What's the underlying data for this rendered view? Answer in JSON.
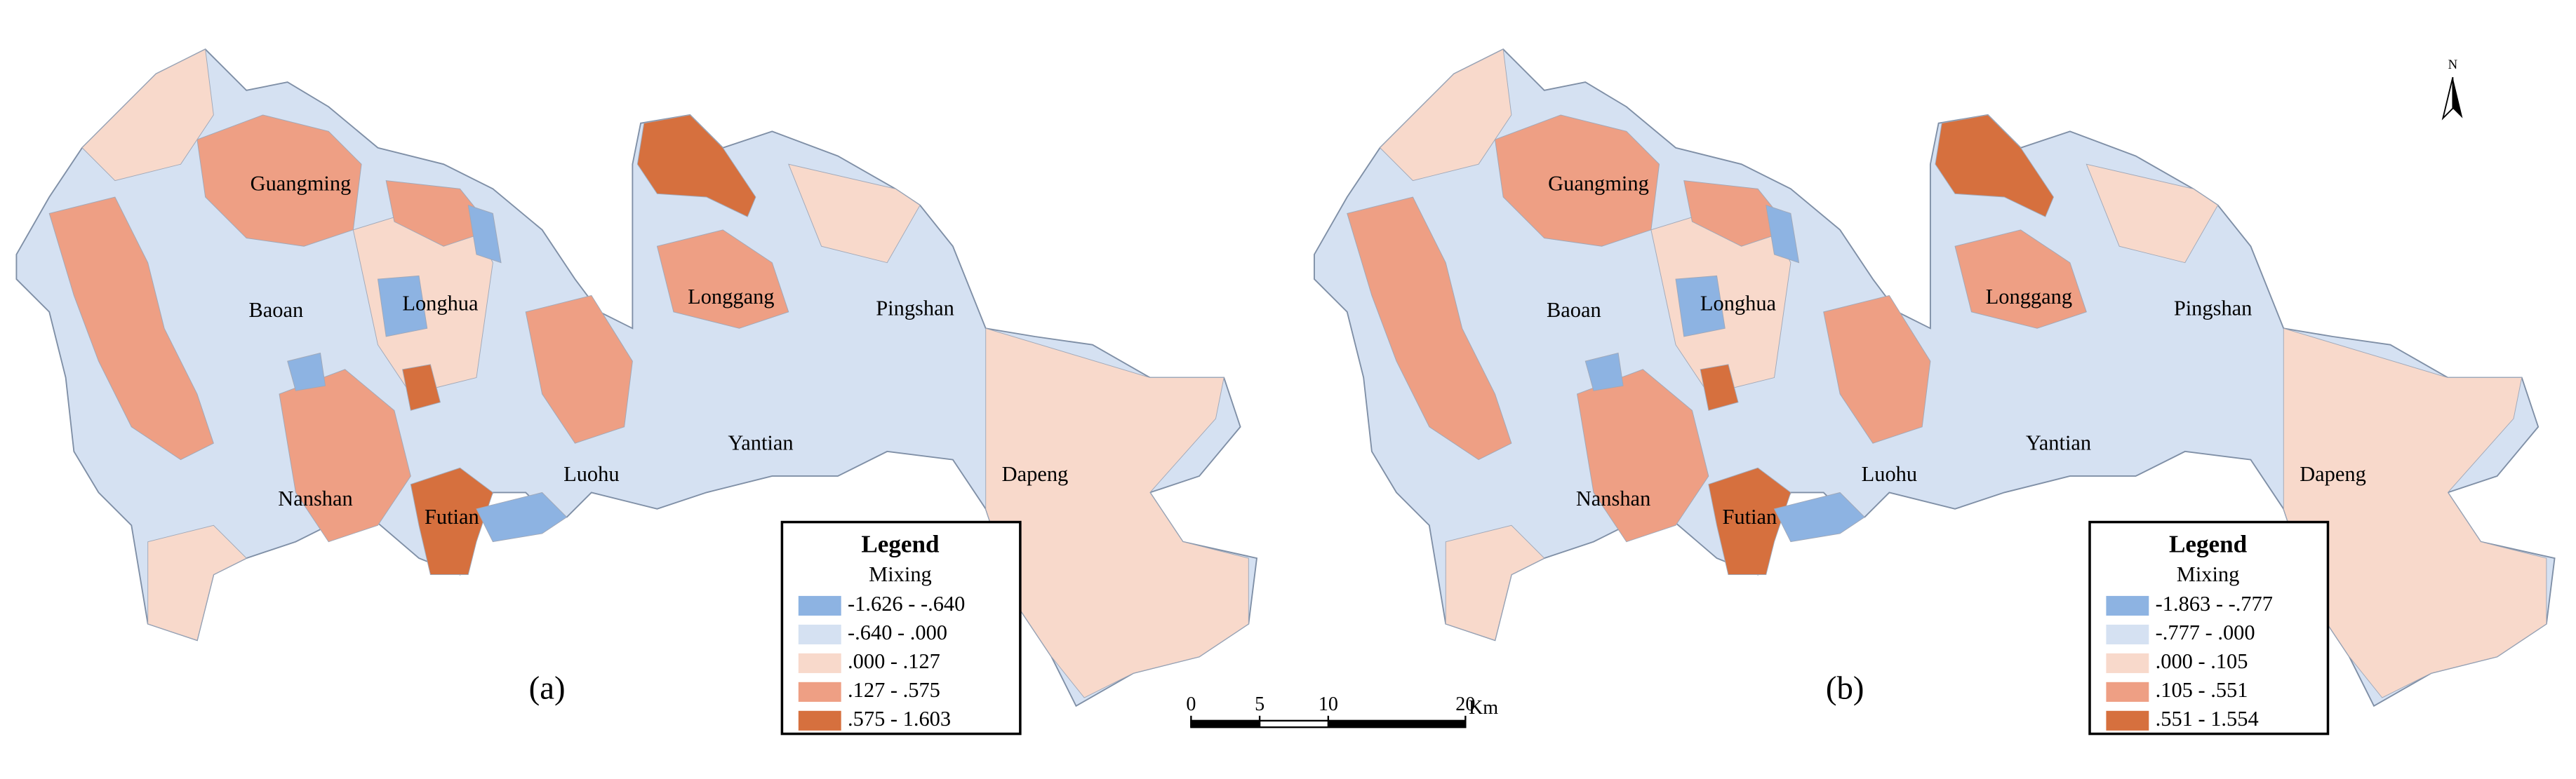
{
  "panels": [
    {
      "label": "(a)",
      "districts": [
        "Guangming",
        "Baoan",
        "Longhua",
        "Longgang",
        "Pingshan",
        "Yantian",
        "Luohu",
        "Nanshan",
        "Futian",
        "Dapeng"
      ],
      "legend": {
        "title": "Legend",
        "subtitle": "Mixing",
        "classes": [
          {
            "label": "-1.626 - -.640",
            "color": "#8db3e2"
          },
          {
            "label": "-.640 - .000",
            "color": "#d5e1f2"
          },
          {
            "label": ".000 - .127",
            "color": "#f8d9cb"
          },
          {
            "label": ".127 - .575",
            "color": "#ee9f84"
          },
          {
            "label": ".575 - 1.603",
            "color": "#d6703e"
          }
        ]
      }
    },
    {
      "label": "(b)",
      "districts": [
        "Guangming",
        "Baoan",
        "Longhua",
        "Longgang",
        "Pingshan",
        "Yantian",
        "Luohu",
        "Nanshan",
        "Futian",
        "Dapeng"
      ],
      "legend": {
        "title": "Legend",
        "subtitle": "Mixing",
        "classes": [
          {
            "label": "-1.863 - -.777",
            "color": "#8db3e2"
          },
          {
            "label": "-.777 - .000",
            "color": "#d5e1f2"
          },
          {
            "label": ".000 - .105",
            "color": "#f8d9cb"
          },
          {
            "label": ".105 - .551",
            "color": "#ee9f84"
          },
          {
            "label": ".551 - 1.554",
            "color": "#d6703e"
          }
        ]
      }
    }
  ],
  "scale_bar": {
    "ticks": [
      0,
      5,
      10,
      20
    ],
    "unit": "Km"
  },
  "north": "N"
}
